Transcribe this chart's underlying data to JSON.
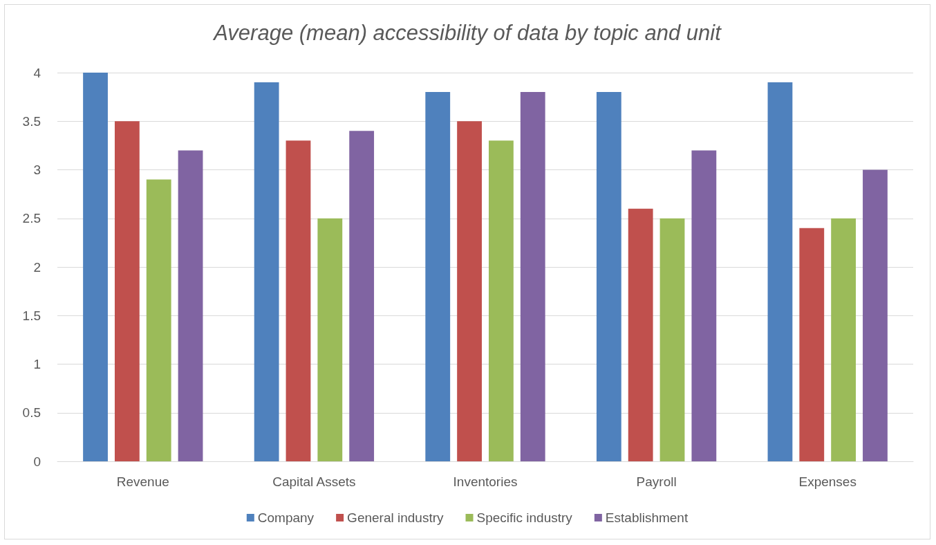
{
  "chart_data": {
    "type": "bar",
    "title": "Average (mean) accessibility of data by topic and unit",
    "categories": [
      "Revenue",
      "Capital Assets",
      "Inventories",
      "Payroll",
      "Expenses"
    ],
    "series": [
      {
        "name": "Company",
        "color": "#4f81bd",
        "values": [
          4,
          3.9,
          3.8,
          3.8,
          3.9
        ]
      },
      {
        "name": "General industry",
        "color": "#c0504d",
        "values": [
          3.5,
          3.3,
          3.5,
          2.6,
          2.4
        ]
      },
      {
        "name": "Specific industry",
        "color": "#9bbb59",
        "values": [
          2.9,
          2.5,
          3.3,
          2.5,
          2.5
        ]
      },
      {
        "name": "Establishment",
        "color": "#8064a2",
        "values": [
          3.2,
          3.4,
          3.8,
          3.2,
          3.0
        ]
      }
    ],
    "ylim": [
      0,
      4
    ],
    "yticks": [
      0,
      0.5,
      1,
      1.5,
      2,
      2.5,
      3,
      3.5,
      4
    ],
    "grid": "y",
    "legend": "bottom"
  }
}
